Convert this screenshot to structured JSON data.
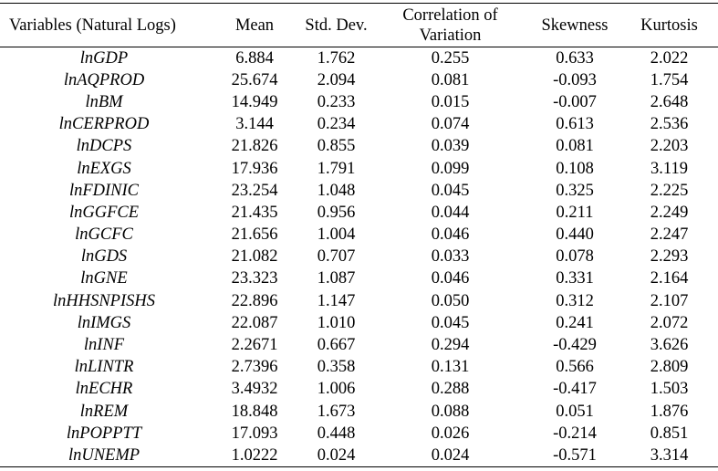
{
  "table": {
    "columns": [
      "Variables (Natural Logs)",
      "Mean",
      "Std. Dev.",
      "Correlation of Variation",
      "Skewness",
      "Kurtosis"
    ],
    "rows": [
      [
        "lnGDP",
        "6.884",
        "1.762",
        "0.255",
        "0.633",
        "2.022"
      ],
      [
        "lnAQPROD",
        "25.674",
        "2.094",
        "0.081",
        "-0.093",
        "1.754"
      ],
      [
        "lnBM",
        "14.949",
        "0.233",
        "0.015",
        "-0.007",
        "2.648"
      ],
      [
        "lnCERPROD",
        "3.144",
        "0.234",
        "0.074",
        "0.613",
        "2.536"
      ],
      [
        "lnDCPS",
        "21.826",
        "0.855",
        "0.039",
        "0.081",
        "2.203"
      ],
      [
        "lnEXGS",
        "17.936",
        "1.791",
        "0.099",
        "0.108",
        "3.119"
      ],
      [
        "lnFDINIC",
        "23.254",
        "1.048",
        "0.045",
        "0.325",
        "2.225"
      ],
      [
        "lnGGFCE",
        "21.435",
        "0.956",
        "0.044",
        "0.211",
        "2.249"
      ],
      [
        "lnGCFC",
        "21.656",
        "1.004",
        "0.046",
        "0.440",
        "2.247"
      ],
      [
        "lnGDS",
        "21.082",
        "0.707",
        "0.033",
        "0.078",
        "2.293"
      ],
      [
        "lnGNE",
        "23.323",
        "1.087",
        "0.046",
        "0.331",
        "2.164"
      ],
      [
        "lnHHSNPISHS",
        "22.896",
        "1.147",
        "0.050",
        "0.312",
        "2.107"
      ],
      [
        "lnIMGS",
        "22.087",
        "1.010",
        "0.045",
        "0.241",
        "2.072"
      ],
      [
        "lnINF",
        "2.2671",
        "0.667",
        "0.294",
        "-0.429",
        "3.626"
      ],
      [
        "lnLINTR",
        "2.7396",
        "0.358",
        "0.131",
        "0.566",
        "2.809"
      ],
      [
        "lnECHR",
        "3.4932",
        "1.006",
        "0.288",
        "-0.417",
        "1.503"
      ],
      [
        "lnREM",
        "18.848",
        "1.673",
        "0.088",
        "0.051",
        "1.876"
      ],
      [
        "lnPOPPTT",
        "17.093",
        "0.448",
        "0.026",
        "-0.214",
        "0.851"
      ],
      [
        "lnUNEMP",
        "1.0222",
        "0.024",
        "0.024",
        "-0.571",
        "3.314"
      ]
    ]
  }
}
